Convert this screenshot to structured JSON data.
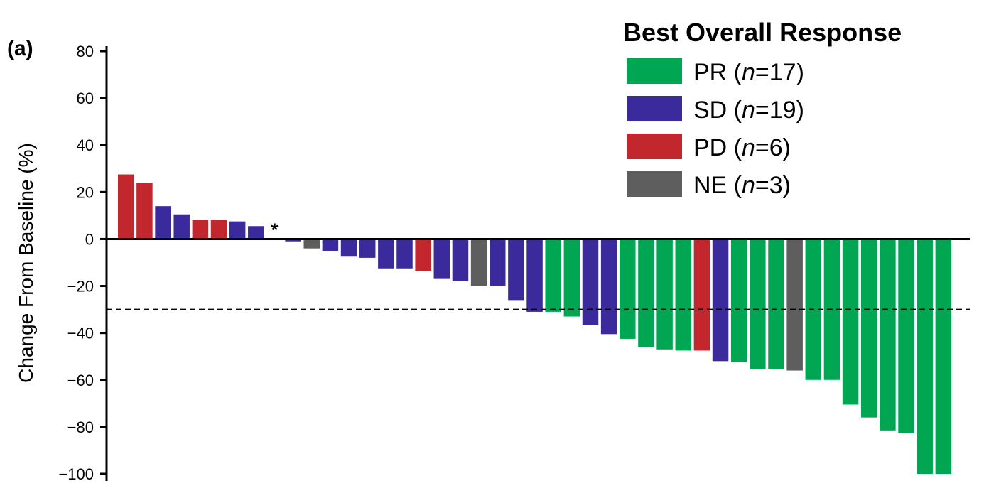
{
  "chart_data": {
    "type": "bar",
    "panel_label": "(a)",
    "ylabel": "Change From Baseline (%)",
    "xlabel": "",
    "ylim": [
      -100,
      80
    ],
    "yticks": [
      80,
      60,
      40,
      20,
      0,
      -20,
      -40,
      -60,
      -80,
      -100
    ],
    "ytick_labels": [
      "80",
      "60",
      "40",
      "20",
      "0",
      "−20",
      "−40",
      "−60",
      "−80",
      "−100"
    ],
    "reference_line": {
      "y": -30,
      "style": "dashed"
    },
    "annotation": "*",
    "annotation_index": 8,
    "legend": {
      "title": "Best Overall Response",
      "position": "top-right",
      "entries": [
        {
          "key": "PR",
          "label": "PR",
          "n": "17"
        },
        {
          "key": "SD",
          "label": "SD",
          "n": "19"
        },
        {
          "key": "PD",
          "label": "PD",
          "n": "6"
        },
        {
          "key": "NE",
          "label": "NE",
          "n": "3"
        }
      ]
    },
    "colors": {
      "PR": "#00a651",
      "SD": "#3b2a9c",
      "PD": "#c1272d",
      "NE": "#5e5e5e"
    },
    "values": [
      27.5,
      24,
      14,
      10.5,
      8,
      8,
      7.5,
      5.5,
      0,
      -1,
      -4,
      -5,
      -7.5,
      -8,
      -12.5,
      -12.5,
      -13.5,
      -17,
      -18,
      -20,
      -20,
      -26,
      -31,
      -31,
      -33,
      -36.5,
      -40.5,
      -42.5,
      -46,
      -47,
      -47.5,
      -47.5,
      -52,
      -52.5,
      -55.5,
      -55.5,
      -56,
      -60,
      -60,
      -70.5,
      -76,
      -81.5,
      -82.5,
      -100,
      -100
    ],
    "categories_response": [
      "PD",
      "PD",
      "SD",
      "SD",
      "PD",
      "PD",
      "SD",
      "SD",
      "SD",
      "SD",
      "NE",
      "SD",
      "SD",
      "SD",
      "SD",
      "SD",
      "PD",
      "SD",
      "SD",
      "NE",
      "SD",
      "SD",
      "SD",
      "PR",
      "PR",
      "SD",
      "SD",
      "PR",
      "PR",
      "PR",
      "PR",
      "PD",
      "SD",
      "PR",
      "PR",
      "PR",
      "NE",
      "PR",
      "PR",
      "PR",
      "PR",
      "PR",
      "PR",
      "PR",
      "PR"
    ]
  }
}
